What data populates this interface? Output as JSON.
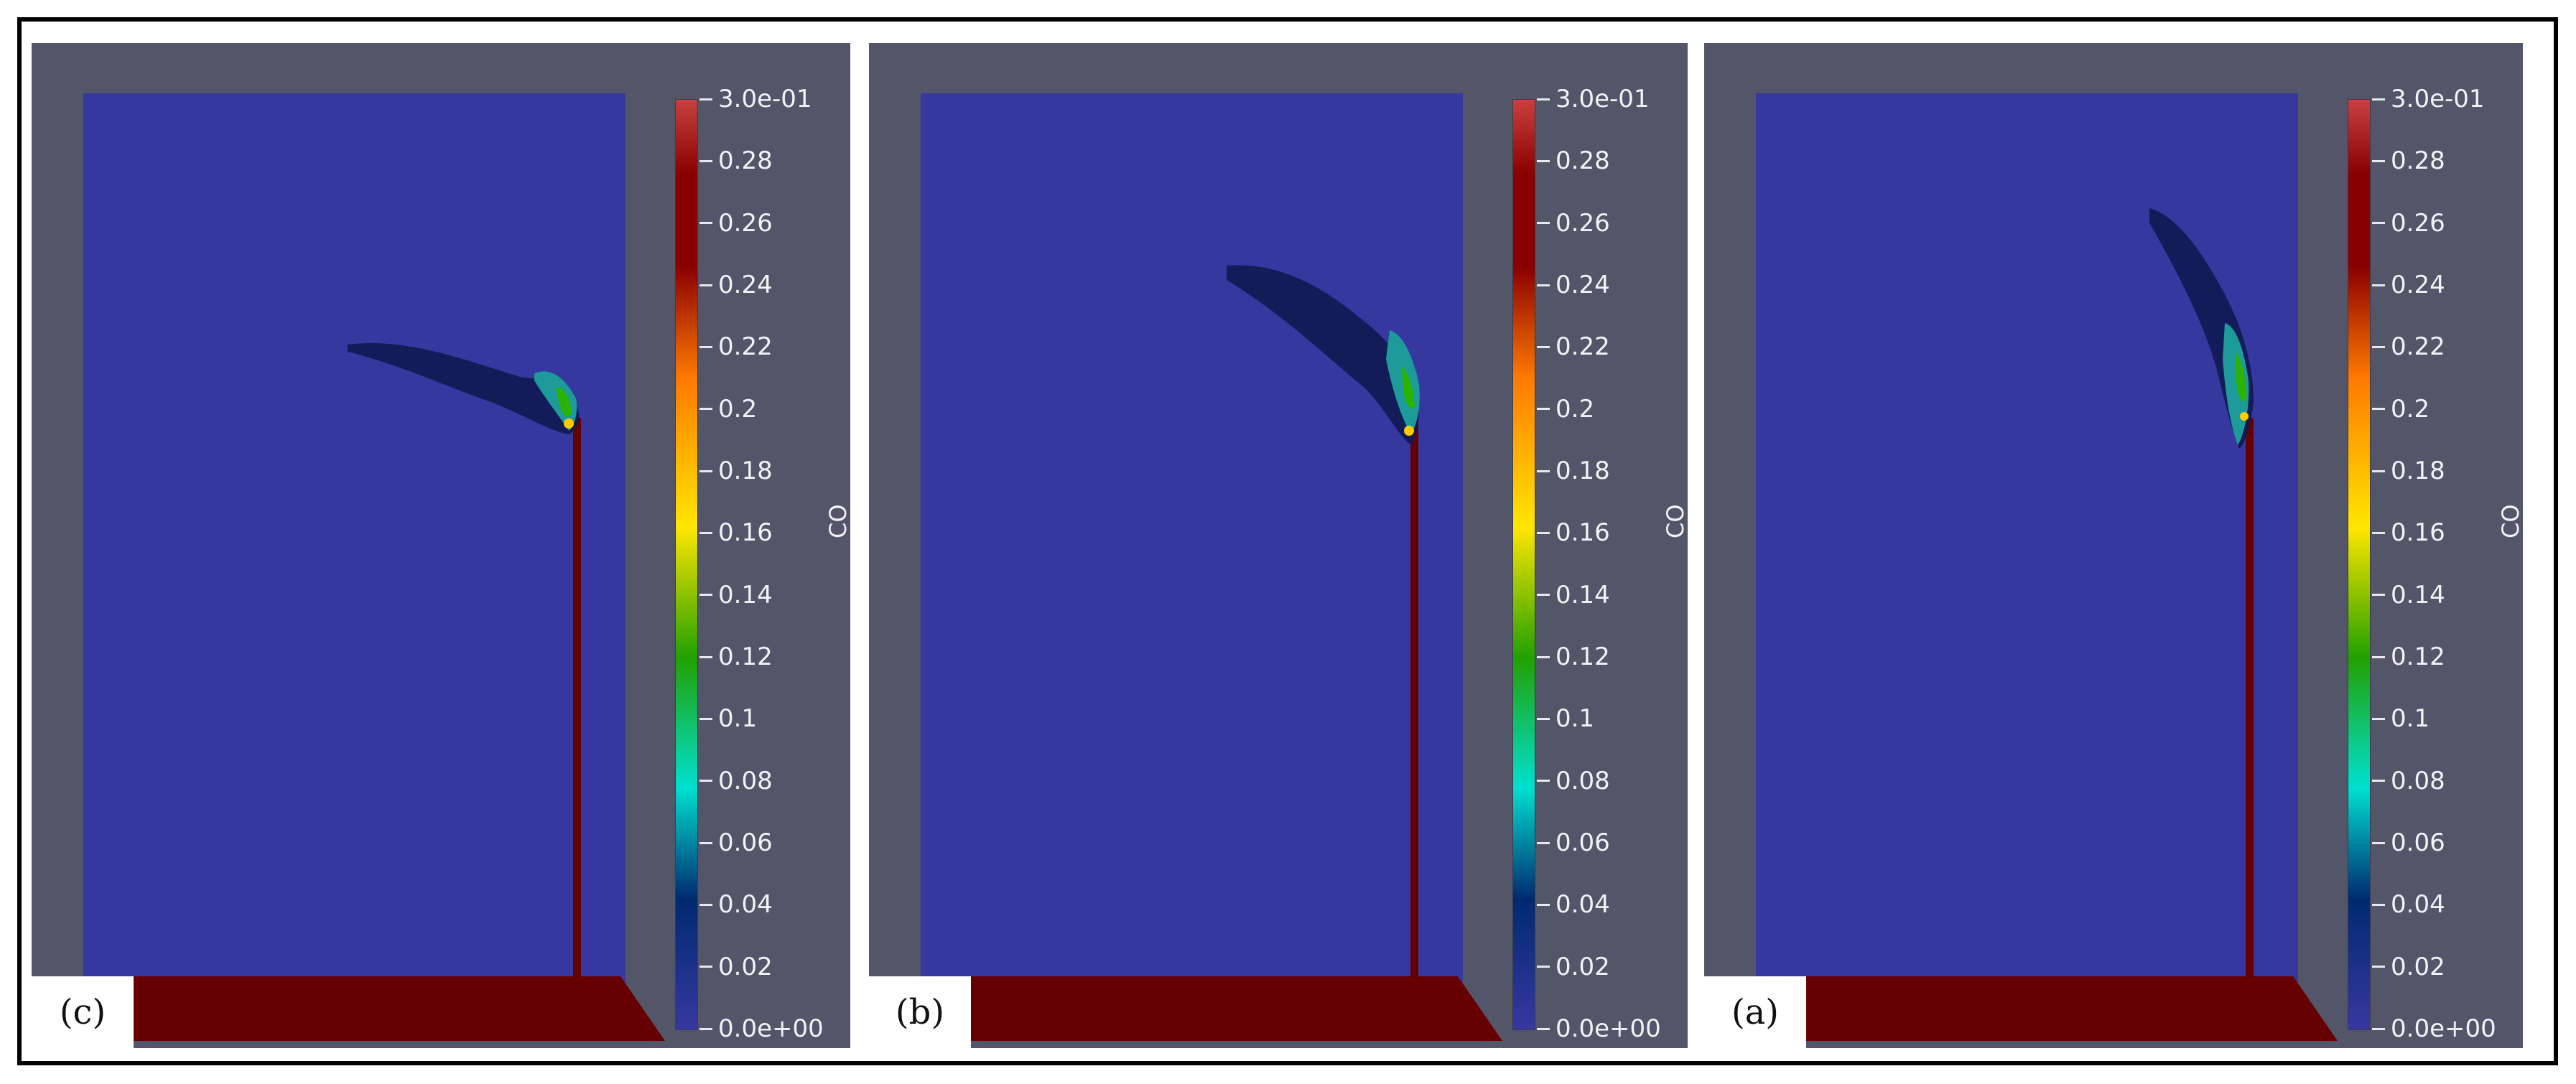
{
  "panels": [
    {
      "label": "(c)",
      "colorbar": {
        "title": "CO",
        "ticks": [
          "3.0e-01",
          "0.28",
          "0.26",
          "0.24",
          "0.22",
          "0.2",
          "0.18",
          "0.16",
          "0.14",
          "0.12",
          "0.1",
          "0.08",
          "0.06",
          "0.04",
          "0.02",
          "0.0e+00"
        ]
      }
    },
    {
      "label": "(b)",
      "colorbar": {
        "title": "CO",
        "ticks": [
          "3.0e-01",
          "0.28",
          "0.26",
          "0.24",
          "0.22",
          "0.2",
          "0.18",
          "0.16",
          "0.14",
          "0.12",
          "0.1",
          "0.08",
          "0.06",
          "0.04",
          "0.02",
          "0.0e+00"
        ]
      }
    },
    {
      "label": "(a)",
      "colorbar": {
        "title": "CO",
        "ticks": [
          "3.0e-01",
          "0.28",
          "0.26",
          "0.24",
          "0.22",
          "0.2",
          "0.18",
          "0.16",
          "0.14",
          "0.12",
          "0.1",
          "0.08",
          "0.06",
          "0.04",
          "0.02",
          "0.0e+00"
        ]
      }
    }
  ],
  "colors": {
    "background": "#535569",
    "domain": "#3737a0",
    "stack_and_floor": "#660000",
    "colormap": [
      "#c84040",
      "#8a0000",
      "#ff7a00",
      "#ffe600",
      "#22a000",
      "#00e0d0",
      "#002a70",
      "#3737a0"
    ]
  }
}
